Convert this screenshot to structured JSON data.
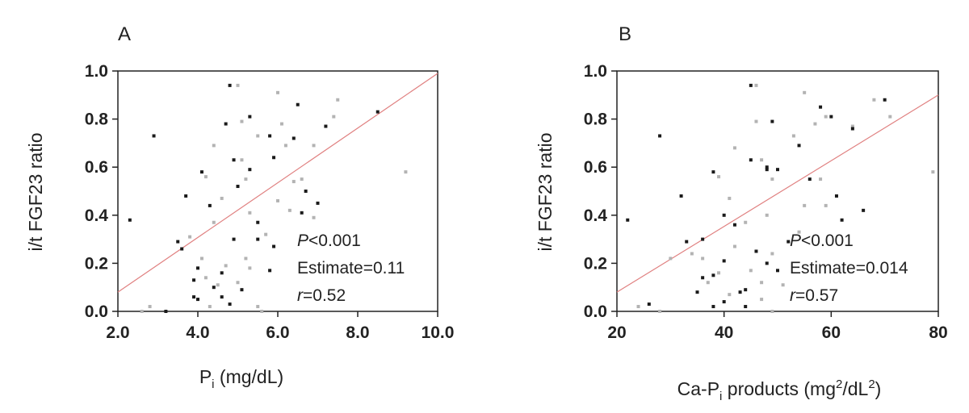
{
  "panels": [
    {
      "letter": "A",
      "ylabel": "i/t FGF23 ratio",
      "xlabel_main": "P",
      "xlabel_sub": "i",
      "xlabel_rest": " (mg/dL)",
      "stats": {
        "p_symbol": "P",
        "p_value": "<0.001",
        "estimate": "Estimate=0.11",
        "r_symbol": "r",
        "r_value": "=0.52"
      }
    },
    {
      "letter": "B",
      "ylabel": "i/t FGF23 ratio",
      "xlabel_main": "Ca-P",
      "xlabel_sub": "i",
      "xlabel_rest": " products (mg",
      "xlabel_sup1": "2",
      "xlabel_mid": "/dL",
      "xlabel_sup2": "2",
      "xlabel_end": ")",
      "stats": {
        "p_symbol": "P",
        "p_value": "<0.001",
        "estimate": "Estimate=0.014",
        "r_symbol": "r",
        "r_value": "=0.57"
      }
    }
  ],
  "colors": {
    "points_dark": "#1a1a1a",
    "points_light": "#b3b3b3",
    "fit_line": "#e08080",
    "axes": "#222222"
  },
  "chart_data": [
    {
      "type": "scatter",
      "title": "A",
      "xlabel": "Pi (mg/dL)",
      "ylabel": "i/t FGF23 ratio",
      "xlim": [
        2.0,
        10.0
      ],
      "ylim": [
        0.0,
        1.0
      ],
      "xticks": [
        "2.0",
        "4.0",
        "6.0",
        "8.0",
        "10.0"
      ],
      "yticks": [
        "0.0",
        "0.2",
        "0.4",
        "0.6",
        "0.8",
        "1.0"
      ],
      "grid": false,
      "fit_line": [
        [
          2.0,
          0.08
        ],
        [
          10.0,
          0.99
        ]
      ],
      "annotations": [
        "P<0.001",
        "Estimate=0.11",
        "r=0.52"
      ],
      "points": [
        [
          2.9,
          0.73
        ],
        [
          4.4,
          0.69
        ],
        [
          4.8,
          0.94
        ],
        [
          5.0,
          0.94
        ],
        [
          5.3,
          0.81
        ],
        [
          6.0,
          0.91
        ],
        [
          6.5,
          0.86
        ],
        [
          7.5,
          0.88
        ],
        [
          8.5,
          0.83
        ],
        [
          9.2,
          0.58
        ],
        [
          4.1,
          0.58
        ],
        [
          4.2,
          0.56
        ],
        [
          3.7,
          0.48
        ],
        [
          4.6,
          0.47
        ],
        [
          4.9,
          0.63
        ],
        [
          5.1,
          0.63
        ],
        [
          5.3,
          0.59
        ],
        [
          5.5,
          0.73
        ],
        [
          5.8,
          0.73
        ],
        [
          6.1,
          0.78
        ],
        [
          6.4,
          0.72
        ],
        [
          6.6,
          0.55
        ],
        [
          6.7,
          0.5
        ],
        [
          6.9,
          0.69
        ],
        [
          7.2,
          0.77
        ],
        [
          7.4,
          0.81
        ],
        [
          5.0,
          0.52
        ],
        [
          5.2,
          0.55
        ],
        [
          5.9,
          0.64
        ],
        [
          6.2,
          0.69
        ],
        [
          3.5,
          0.29
        ],
        [
          3.8,
          0.31
        ],
        [
          4.0,
          0.18
        ],
        [
          4.2,
          0.14
        ],
        [
          4.4,
          0.1
        ],
        [
          4.5,
          0.11
        ],
        [
          4.6,
          0.16
        ],
        [
          4.7,
          0.19
        ],
        [
          4.9,
          0.3
        ],
        [
          5.0,
          0.12
        ],
        [
          5.1,
          0.09
        ],
        [
          5.3,
          0.18
        ],
        [
          5.5,
          0.3
        ],
        [
          5.7,
          0.32
        ],
        [
          5.9,
          0.27
        ],
        [
          6.3,
          0.42
        ],
        [
          6.6,
          0.41
        ],
        [
          6.9,
          0.39
        ],
        [
          4.0,
          0.05
        ],
        [
          4.3,
          0.02
        ],
        [
          4.8,
          0.03
        ],
        [
          5.5,
          0.02
        ],
        [
          2.3,
          0.38
        ],
        [
          2.8,
          0.02
        ],
        [
          3.2,
          0.0
        ],
        [
          2.6,
          0.0
        ],
        [
          3.9,
          0.13
        ],
        [
          4.1,
          0.22
        ],
        [
          4.6,
          0.06
        ],
        [
          5.2,
          0.22
        ],
        [
          5.8,
          0.17
        ],
        [
          4.4,
          0.37
        ],
        [
          5.5,
          0.37
        ],
        [
          6.0,
          0.46
        ],
        [
          3.6,
          0.26
        ],
        [
          5.6,
          0.0
        ],
        [
          7.0,
          0.45
        ],
        [
          5.1,
          0.79
        ],
        [
          4.7,
          0.78
        ],
        [
          6.4,
          0.54
        ],
        [
          3.9,
          0.06
        ],
        [
          5.3,
          0.41
        ],
        [
          4.3,
          0.44
        ]
      ]
    },
    {
      "type": "scatter",
      "title": "B",
      "xlabel": "Ca-Pi products (mg2/dL2)",
      "ylabel": "i/t FGF23 ratio",
      "xlim": [
        20,
        80
      ],
      "ylim": [
        0.0,
        1.0
      ],
      "xticks": [
        "20",
        "40",
        "60",
        "80"
      ],
      "yticks": [
        "0.0",
        "0.2",
        "0.4",
        "0.6",
        "0.8",
        "1.0"
      ],
      "grid": false,
      "fit_line": [
        [
          20,
          0.08
        ],
        [
          80,
          0.9
        ]
      ],
      "annotations": [
        "P<0.001",
        "Estimate=0.014",
        "r=0.57"
      ],
      "points": [
        [
          28,
          0.73
        ],
        [
          42,
          0.68
        ],
        [
          45,
          0.94
        ],
        [
          46,
          0.94
        ],
        [
          49,
          0.79
        ],
        [
          55,
          0.91
        ],
        [
          58,
          0.85
        ],
        [
          68,
          0.88
        ],
        [
          70,
          0.88
        ],
        [
          79,
          0.58
        ],
        [
          38,
          0.58
        ],
        [
          39,
          0.56
        ],
        [
          32,
          0.48
        ],
        [
          41,
          0.47
        ],
        [
          45,
          0.63
        ],
        [
          47,
          0.63
        ],
        [
          48,
          0.59
        ],
        [
          53,
          0.73
        ],
        [
          54,
          0.69
        ],
        [
          57,
          0.78
        ],
        [
          60,
          0.81
        ],
        [
          58,
          0.55
        ],
        [
          61,
          0.48
        ],
        [
          64,
          0.77
        ],
        [
          66,
          0.42
        ],
        [
          59,
          0.44
        ],
        [
          50,
          0.59
        ],
        [
          49,
          0.55
        ],
        [
          48,
          0.6
        ],
        [
          55,
          0.44
        ],
        [
          33,
          0.29
        ],
        [
          34,
          0.24
        ],
        [
          36,
          0.14
        ],
        [
          37,
          0.12
        ],
        [
          38,
          0.15
        ],
        [
          39,
          0.16
        ],
        [
          40,
          0.21
        ],
        [
          42,
          0.27
        ],
        [
          44,
          0.09
        ],
        [
          45,
          0.17
        ],
        [
          46,
          0.25
        ],
        [
          47,
          0.12
        ],
        [
          48,
          0.2
        ],
        [
          49,
          0.24
        ],
        [
          50,
          0.17
        ],
        [
          51,
          0.11
        ],
        [
          52,
          0.29
        ],
        [
          54,
          0.33
        ],
        [
          40,
          0.04
        ],
        [
          41,
          0.07
        ],
        [
          44,
          0.02
        ],
        [
          47,
          0.05
        ],
        [
          22,
          0.38
        ],
        [
          24,
          0.02
        ],
        [
          26,
          0.03
        ],
        [
          28,
          0.0
        ],
        [
          35,
          0.08
        ],
        [
          36,
          0.22
        ],
        [
          43,
          0.08
        ],
        [
          48,
          0.4
        ],
        [
          40,
          0.4
        ],
        [
          44,
          0.37
        ],
        [
          42,
          0.36
        ],
        [
          30,
          0.22
        ],
        [
          38,
          0.02
        ],
        [
          49,
          0.0
        ],
        [
          62,
          0.38
        ],
        [
          46,
          0.79
        ],
        [
          56,
          0.55
        ],
        [
          59,
          0.81
        ],
        [
          64,
          0.76
        ],
        [
          71,
          0.81
        ],
        [
          36,
          0.3
        ]
      ]
    }
  ]
}
